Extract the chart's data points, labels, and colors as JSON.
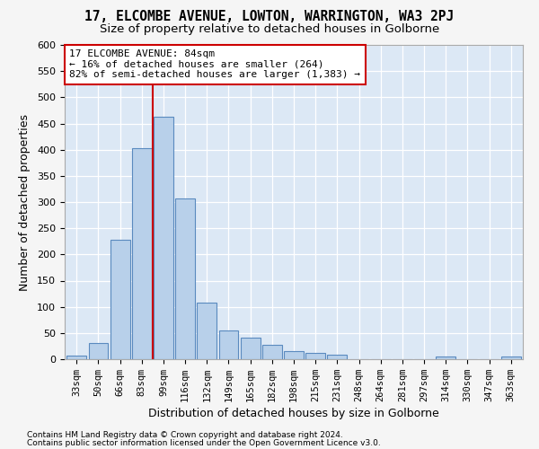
{
  "title1": "17, ELCOMBE AVENUE, LOWTON, WARRINGTON, WA3 2PJ",
  "title2": "Size of property relative to detached houses in Golborne",
  "xlabel": "Distribution of detached houses by size in Golborne",
  "ylabel": "Number of detached properties",
  "categories": [
    "33sqm",
    "50sqm",
    "66sqm",
    "83sqm",
    "99sqm",
    "116sqm",
    "132sqm",
    "149sqm",
    "165sqm",
    "182sqm",
    "198sqm",
    "215sqm",
    "231sqm",
    "248sqm",
    "264sqm",
    "281sqm",
    "297sqm",
    "314sqm",
    "330sqm",
    "347sqm",
    "363sqm"
  ],
  "values": [
    7,
    31,
    228,
    403,
    463,
    307,
    108,
    55,
    41,
    28,
    15,
    12,
    8,
    0,
    0,
    0,
    0,
    5,
    0,
    0,
    5
  ],
  "bar_color": "#b8d0ea",
  "bar_edge_color": "#5a8abf",
  "vline_xidx": 3.5,
  "vline_color": "#cc0000",
  "annotation_line1": "17 ELCOMBE AVENUE: 84sqm",
  "annotation_line2": "← 16% of detached houses are smaller (264)",
  "annotation_line3": "82% of semi-detached houses are larger (1,383) →",
  "annotation_box_color": "#ffffff",
  "annotation_box_edge": "#cc0000",
  "ylim": [
    0,
    600
  ],
  "yticks": [
    0,
    50,
    100,
    150,
    200,
    250,
    300,
    350,
    400,
    450,
    500,
    550,
    600
  ],
  "footnote1": "Contains HM Land Registry data © Crown copyright and database right 2024.",
  "footnote2": "Contains public sector information licensed under the Open Government Licence v3.0.",
  "bg_color": "#dce8f5",
  "grid_color": "#ffffff",
  "bar_width": 0.9,
  "title_fontsize": 10.5,
  "subtitle_fontsize": 9.5,
  "tick_fontsize": 7.5,
  "ylabel_fontsize": 9,
  "xlabel_fontsize": 9
}
